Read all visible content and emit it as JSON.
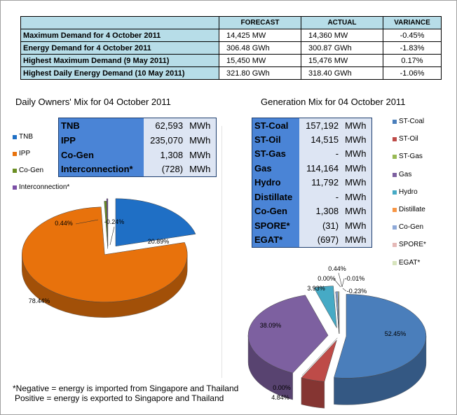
{
  "summary": {
    "headers": [
      "",
      "FORECAST",
      "ACTUAL",
      "VARIANCE"
    ],
    "rows": [
      {
        "label": "Maximum Demand for 4 October 2011",
        "forecast": "14,425  MW",
        "actual": "14,360  MW",
        "variance": "-0.45%"
      },
      {
        "label": "Energy Demand for 4 October 2011",
        "forecast": "306.48  GWh",
        "actual": "300.87  GWh",
        "variance": "-1.83%"
      },
      {
        "label": "Highest Maximum Demand (9 May 2011)",
        "forecast": "15,450  MW",
        "actual": "15,476  MW",
        "variance": "0.17%"
      },
      {
        "label": "Highest Daily Energy Demand (10 May 2011)",
        "forecast": "321.80  GWh",
        "actual": "318.40  GWh",
        "variance": "-1.06%"
      }
    ]
  },
  "owners_title": "Daily Owners' Mix for 04 October 2011",
  "generation_title": "Generation Mix for 04 October 2011",
  "owners_table": [
    {
      "name": "TNB",
      "value": "62,593",
      "unit": "MWh"
    },
    {
      "name": "IPP",
      "value": "235,070",
      "unit": "MWh"
    },
    {
      "name": "Co-Gen",
      "value": "1,308",
      "unit": "MWh"
    },
    {
      "name": "Interconnection*",
      "value": "(728)",
      "unit": "MWh"
    }
  ],
  "generation_table": [
    {
      "name": "ST-Coal",
      "value": "157,192",
      "unit": "MWh"
    },
    {
      "name": "ST-Oil",
      "value": "14,515",
      "unit": "MWh"
    },
    {
      "name": "ST-Gas",
      "value": "-",
      "unit": "MWh"
    },
    {
      "name": "Gas",
      "value": "114,164",
      "unit": "MWh"
    },
    {
      "name": "Hydro",
      "value": "11,792",
      "unit": "MWh"
    },
    {
      "name": "Distillate",
      "value": "-",
      "unit": "MWh"
    },
    {
      "name": "Co-Gen",
      "value": "1,308",
      "unit": "MWh"
    },
    {
      "name": "SPORE*",
      "value": "(31)",
      "unit": "MWh"
    },
    {
      "name": "EGAT*",
      "value": "(697)",
      "unit": "MWh"
    }
  ],
  "notes": [
    "*Negative = energy is imported from Singapore and Thailand",
    "Positive = energy is exported to Singapore and Thailand"
  ],
  "chart_data": [
    {
      "type": "pie",
      "title": "Daily Owners' Mix for 04 October 2011",
      "legend_position": "left",
      "categories": [
        "TNB",
        "IPP",
        "Co-Gen",
        "Interconnection*"
      ],
      "values": [
        20.89,
        78.44,
        0.44,
        -0.24
      ],
      "labels": [
        "20.89%",
        "78.44%",
        "0.44%",
        "-0.24%"
      ],
      "colors": [
        "#1f6fc5",
        "#e8720c",
        "#6b8e23",
        "#7b4fa6"
      ]
    },
    {
      "type": "pie",
      "title": "Generation Mix for 04 October 2011",
      "legend_position": "right",
      "categories": [
        "ST-Coal",
        "ST-Oil",
        "ST-Gas",
        "Gas",
        "Hydro",
        "Distillate",
        "Co-Gen",
        "SPORE*",
        "EGAT*"
      ],
      "values": [
        52.45,
        4.84,
        0.0,
        38.09,
        3.93,
        0.0,
        0.44,
        -0.01,
        -0.23
      ],
      "labels": [
        "52.45%",
        "4.84%",
        "0.00%",
        "38.09%",
        "3.93%",
        "0.00%",
        "0.44%",
        "-0.01%",
        "-0.23%"
      ],
      "colors": [
        "#4a7ebb",
        "#be4b48",
        "#98b954",
        "#7d60a0",
        "#46aac5",
        "#f79646",
        "#8ea9d8",
        "#e5b9b7",
        "#d7e4bd"
      ]
    }
  ]
}
